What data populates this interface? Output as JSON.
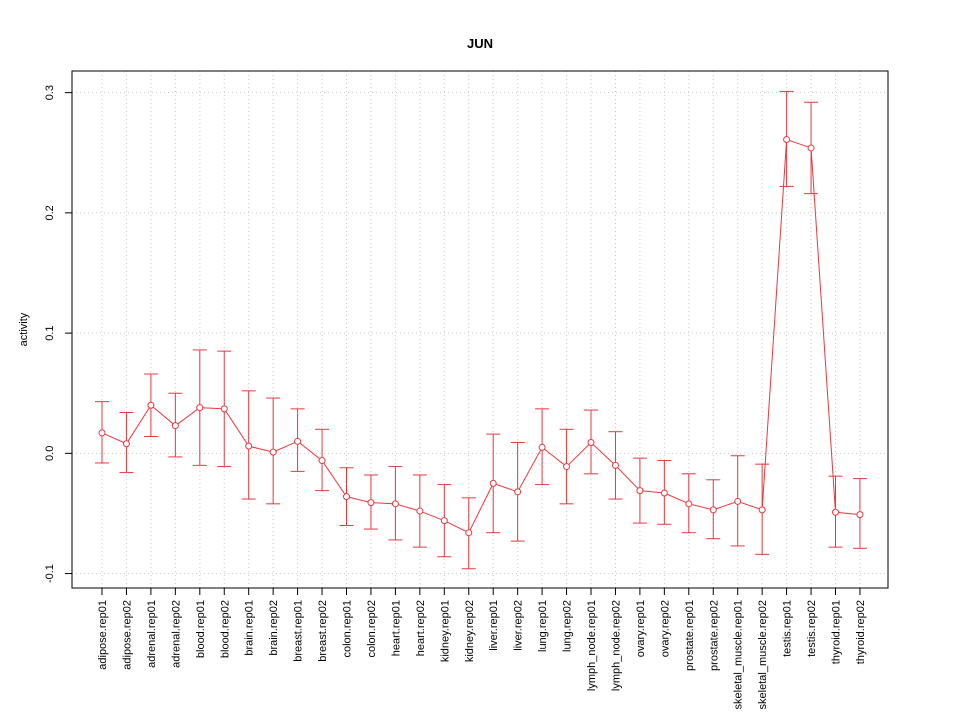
{
  "chart_data": {
    "type": "line",
    "title": "JUN",
    "xlabel": "",
    "ylabel": "activity",
    "ylim": [
      -0.112,
      0.318
    ],
    "yticks": [
      -0.1,
      0.0,
      0.1,
      0.2,
      0.3
    ],
    "ytick_labels": [
      "-0.1",
      "0.0",
      "0.1",
      "0.2",
      "0.3"
    ],
    "grid": true,
    "colors": {
      "series": "#e8383d",
      "grid": "#c8c8c8",
      "axis": "#000000"
    },
    "categories": [
      "adipose.rep01",
      "adipose.rep02",
      "adrenal.rep01",
      "adrenal.rep02",
      "blood.rep01",
      "blood.rep02",
      "brain.rep01",
      "brain.rep02",
      "breast.rep01",
      "breast.rep02",
      "colon.rep01",
      "colon.rep02",
      "heart.rep01",
      "heart.rep02",
      "kidney.rep01",
      "kidney.rep02",
      "liver.rep01",
      "liver.rep02",
      "lung.rep01",
      "lung.rep02",
      "lymph_node.rep01",
      "lymph_node.rep02",
      "ovary.rep01",
      "ovary.rep02",
      "prostate.rep01",
      "prostate.rep02",
      "skeletal_muscle.rep01",
      "skeletal_muscle.rep02",
      "testis.rep01",
      "testis.rep02",
      "thyroid.rep01",
      "thyroid.rep02"
    ],
    "values": [
      0.017,
      0.008,
      0.04,
      0.023,
      0.038,
      0.037,
      0.006,
      0.001,
      0.01,
      -0.006,
      -0.036,
      -0.041,
      -0.042,
      -0.048,
      -0.056,
      -0.066,
      -0.025,
      -0.032,
      0.005,
      -0.011,
      0.009,
      -0.01,
      -0.031,
      -0.033,
      -0.042,
      -0.047,
      -0.04,
      -0.047,
      0.261,
      0.254,
      -0.049,
      -0.051
    ],
    "upper": [
      0.043,
      0.034,
      0.066,
      0.05,
      0.086,
      0.085,
      0.052,
      0.046,
      0.037,
      0.02,
      -0.012,
      -0.018,
      -0.011,
      -0.018,
      -0.026,
      -0.037,
      0.016,
      0.009,
      0.037,
      0.02,
      0.036,
      0.018,
      -0.004,
      -0.006,
      -0.017,
      -0.022,
      -0.002,
      -0.009,
      0.301,
      0.292,
      -0.019,
      -0.021
    ],
    "lower": [
      -0.008,
      -0.016,
      0.014,
      -0.003,
      -0.01,
      -0.011,
      -0.038,
      -0.042,
      -0.015,
      -0.031,
      -0.06,
      -0.063,
      -0.072,
      -0.078,
      -0.086,
      -0.096,
      -0.066,
      -0.073,
      -0.026,
      -0.042,
      -0.017,
      -0.038,
      -0.058,
      -0.059,
      -0.066,
      -0.071,
      -0.077,
      -0.084,
      0.222,
      0.216,
      -0.078,
      -0.079
    ]
  }
}
